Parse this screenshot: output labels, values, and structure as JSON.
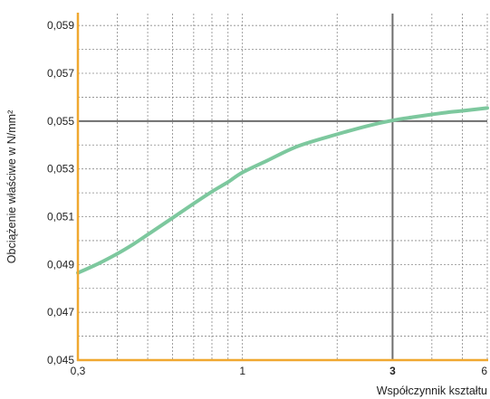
{
  "chart_data": {
    "type": "line",
    "title": "",
    "xlabel": "Współczynnik kształtu",
    "ylabel": "Obciążenie właściwe w N/mm²",
    "x_scale": "log",
    "xlim": [
      0.3,
      6
    ],
    "ylim": [
      0.045,
      0.0595
    ],
    "x_ticks": [
      {
        "value": 0.3,
        "label": "0,3",
        "bold": false
      },
      {
        "value": 1,
        "label": "1",
        "bold": false
      },
      {
        "value": 3,
        "label": "3",
        "bold": true
      },
      {
        "value": 6,
        "label": "6",
        "bold": false
      }
    ],
    "y_ticks": [
      {
        "value": 0.045,
        "label": "0,045"
      },
      {
        "value": 0.047,
        "label": "0,047"
      },
      {
        "value": 0.049,
        "label": "0,049"
      },
      {
        "value": 0.051,
        "label": "0,051"
      },
      {
        "value": 0.053,
        "label": "0,053"
      },
      {
        "value": 0.055,
        "label": "0,055"
      },
      {
        "value": 0.057,
        "label": "0,057"
      },
      {
        "value": 0.059,
        "label": "0,059"
      }
    ],
    "x_minor_gridlines": [
      0.3,
      0.4,
      0.5,
      0.6,
      0.7,
      0.8,
      0.9,
      1,
      2,
      3,
      4,
      5,
      6
    ],
    "y_minor_gridlines": [
      0.046,
      0.047,
      0.048,
      0.049,
      0.05,
      0.051,
      0.052,
      0.053,
      0.054,
      0.055,
      0.056,
      0.057,
      0.058,
      0.059
    ],
    "grid": true,
    "reference_lines": {
      "x": 3,
      "y": 0.055
    },
    "series": [
      {
        "x": [
          0.3,
          0.35,
          0.4,
          0.45,
          0.5,
          0.6,
          0.7,
          0.8,
          0.9,
          1.0,
          1.2,
          1.5,
          2.0,
          2.5,
          3.0,
          3.5,
          4.0,
          4.5,
          5.0,
          5.5,
          6.0
        ],
        "y": [
          0.04865,
          0.04905,
          0.04945,
          0.04985,
          0.05025,
          0.05095,
          0.05155,
          0.05205,
          0.05245,
          0.05285,
          0.05335,
          0.05395,
          0.05445,
          0.0548,
          0.05503,
          0.05517,
          0.05528,
          0.05537,
          0.05543,
          0.05549,
          0.05555
        ]
      }
    ],
    "colors": {
      "line": "#7dc89e",
      "axis": "#f0a830",
      "grid": "#8a8a8a",
      "reference": "#6e6e6e"
    }
  }
}
